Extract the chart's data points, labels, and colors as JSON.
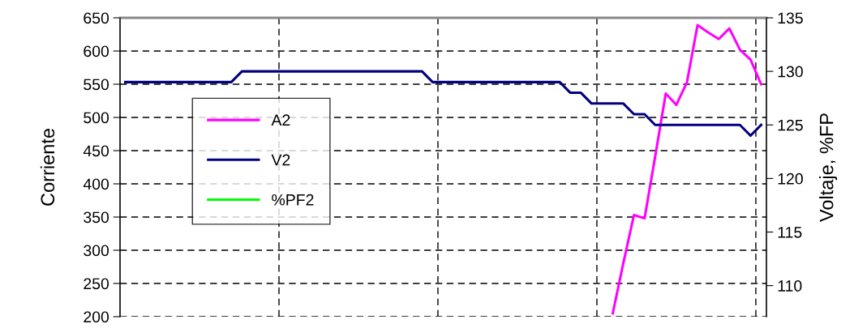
{
  "chart_data": {
    "type": "line",
    "categories": [
      null,
      null,
      null,
      null,
      null,
      null,
      null,
      null,
      null,
      null,
      null,
      null,
      null,
      null,
      null,
      null,
      null,
      null,
      null,
      null,
      null,
      null,
      null,
      null,
      null,
      null,
      null,
      null,
      null,
      null,
      null,
      null,
      null,
      null,
      null,
      null,
      null,
      null,
      null,
      null,
      null,
      null,
      null,
      null,
      null,
      null,
      null,
      null,
      null,
      null,
      null,
      null,
      null,
      null,
      null,
      null,
      null,
      null,
      null,
      null,
      null
    ],
    "ylabel": "Corriente",
    "y2label": "Voltaje, %FP",
    "ylim": [
      200,
      650
    ],
    "yticks": [
      200,
      250,
      300,
      350,
      400,
      450,
      500,
      550,
      600,
      650
    ],
    "y2lim": [
      107.1,
      135
    ],
    "y2ticks": [
      110,
      115,
      120,
      125,
      130,
      135
    ],
    "grid": true,
    "legend": "center left",
    "line_style": "solid",
    "series": [
      {
        "name": "A2",
        "color": "#ff00ff",
        "axis": "y",
        "values": [
          null,
          null,
          null,
          null,
          null,
          null,
          null,
          null,
          null,
          null,
          null,
          null,
          null,
          null,
          null,
          null,
          null,
          null,
          null,
          null,
          null,
          null,
          null,
          null,
          null,
          null,
          null,
          null,
          null,
          null,
          null,
          null,
          null,
          null,
          null,
          null,
          null,
          null,
          null,
          null,
          null,
          null,
          null,
          null,
          null,
          null,
          205,
          281,
          353,
          348,
          441,
          536,
          519,
          553,
          639,
          628,
          618,
          634,
          602,
          587,
          550
        ]
      },
      {
        "name": "V2",
        "color": "#000080",
        "axis": "y2",
        "values": [
          129,
          129,
          129,
          129,
          129,
          129,
          129,
          129,
          129,
          129,
          129,
          130,
          130,
          130,
          130,
          130,
          130,
          130,
          130,
          130,
          130,
          130,
          130,
          130,
          130,
          130,
          130,
          130,
          130,
          129,
          129,
          129,
          129,
          129,
          129,
          129,
          129,
          129,
          129,
          129,
          129,
          129,
          128,
          128,
          127,
          127,
          127,
          127,
          126,
          126,
          125,
          125,
          125,
          125,
          125,
          125,
          125,
          125,
          125,
          124,
          125
        ]
      },
      {
        "name": "%PF2",
        "color": "#00ff00",
        "axis": "y2",
        "values": [
          null,
          null,
          null,
          null,
          null,
          null,
          null,
          null,
          null,
          null,
          null,
          null,
          null,
          null,
          null,
          null,
          null,
          null,
          null,
          null,
          null,
          null,
          null,
          null,
          null,
          null,
          null,
          null,
          null,
          null,
          null,
          null,
          null,
          null,
          null,
          null,
          null,
          null,
          null,
          null,
          null,
          null,
          null,
          null,
          null,
          null,
          null,
          null,
          null,
          null,
          null,
          null,
          null,
          null,
          null,
          null,
          null,
          null,
          null,
          null,
          null
        ]
      }
    ]
  }
}
